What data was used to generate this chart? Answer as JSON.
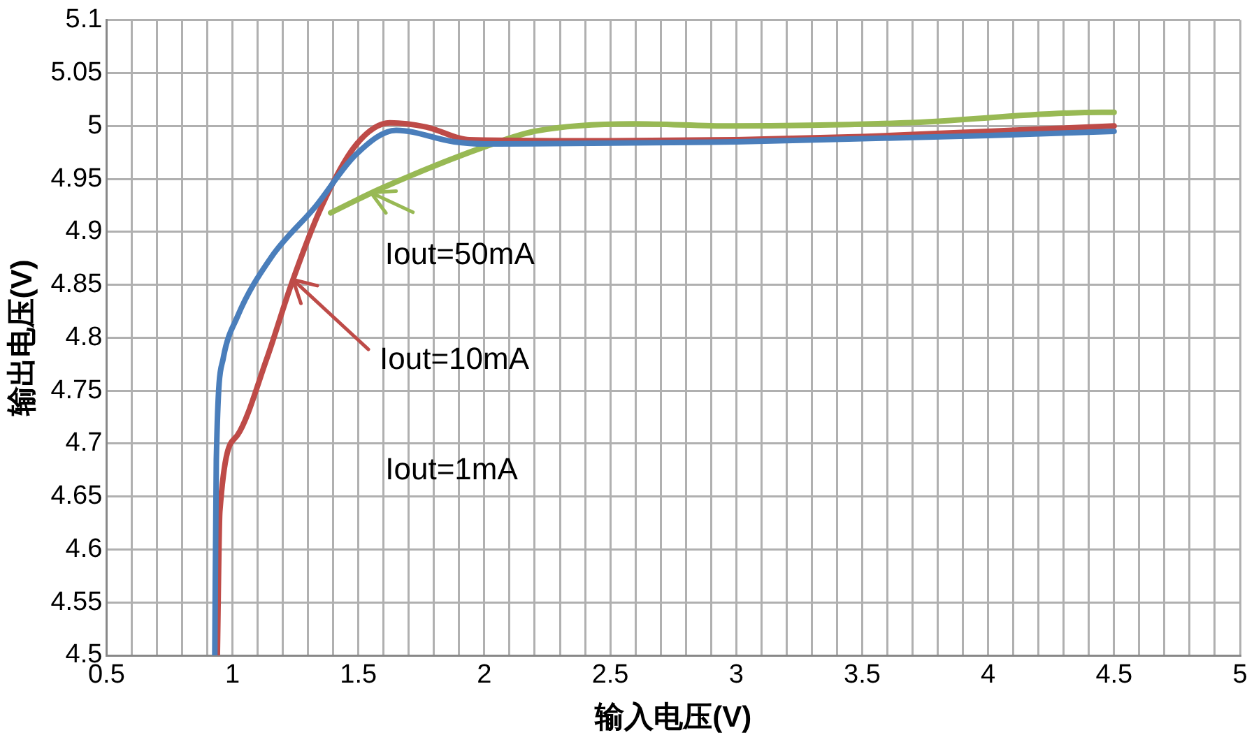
{
  "chart_data": {
    "type": "line",
    "xlabel": "输入电压(V)",
    "ylabel": "输出电压(V)",
    "xlim": [
      0.5,
      5
    ],
    "ylim": [
      4.5,
      5.1
    ],
    "xticks": [
      0.5,
      {
        "value": 0.6,
        "label": null
      },
      {
        "value": 0.7,
        "label": null
      },
      {
        "value": 0.8,
        "label": null
      },
      {
        "value": 0.9,
        "label": null
      },
      1,
      {
        "value": 1.1,
        "label": null
      },
      {
        "value": 1.2,
        "label": null
      },
      {
        "value": 1.3,
        "label": null
      },
      {
        "value": 1.4,
        "label": null
      },
      1.5,
      {
        "value": 1.6,
        "label": null
      },
      {
        "value": 1.7,
        "label": null
      },
      {
        "value": 1.8,
        "label": null
      },
      {
        "value": 1.9,
        "label": null
      },
      2,
      {
        "value": 2.1,
        "label": null
      },
      {
        "value": 2.2,
        "label": null
      },
      {
        "value": 2.3,
        "label": null
      },
      {
        "value": 2.4,
        "label": null
      },
      2.5,
      {
        "value": 2.6,
        "label": null
      },
      {
        "value": 2.7,
        "label": null
      },
      {
        "value": 2.8,
        "label": null
      },
      {
        "value": 2.9,
        "label": null
      },
      3,
      {
        "value": 3.1,
        "label": null
      },
      {
        "value": 3.2,
        "label": null
      },
      {
        "value": 3.3,
        "label": null
      },
      {
        "value": 3.4,
        "label": null
      },
      3.5,
      {
        "value": 3.6,
        "label": null
      },
      {
        "value": 3.7,
        "label": null
      },
      {
        "value": 3.8,
        "label": null
      },
      {
        "value": 3.9,
        "label": null
      },
      4,
      {
        "value": 4.1,
        "label": null
      },
      {
        "value": 4.2,
        "label": null
      },
      {
        "value": 4.3,
        "label": null
      },
      {
        "value": 4.4,
        "label": null
      },
      4.5,
      {
        "value": 4.6,
        "label": null
      },
      {
        "value": 4.7,
        "label": null
      },
      {
        "value": 4.8,
        "label": null
      },
      {
        "value": 4.9,
        "label": null
      },
      5
    ],
    "yticks": [
      4.5,
      4.55,
      4.6,
      4.65,
      4.7,
      4.75,
      4.8,
      4.85,
      4.9,
      4.95,
      5,
      5.05,
      5.1
    ],
    "grid": true,
    "legend": false,
    "marker": "none",
    "line_style": "solid",
    "series": [
      {
        "color": "#4a7ebb",
        "x": [
          0.93,
          0.936,
          0.963,
          1.018,
          1.154,
          1.33,
          1.49,
          1.65,
          1.88,
          2.0,
          3.0,
          3.5,
          4.0,
          4.5
        ],
        "values": [
          4.5,
          4.685,
          4.78,
          4.819,
          4.876,
          4.924,
          4.973,
          4.996,
          4.985,
          4.983,
          4.985,
          4.988,
          4.991,
          4.995
        ]
      },
      {
        "color": "#be4b48",
        "x": [
          0.94,
          0.95,
          1.02,
          1.136,
          1.236,
          1.354,
          1.49,
          1.625,
          1.77,
          1.94,
          2.5,
          3.0,
          3.5,
          4.0,
          4.5
        ],
        "values": [
          4.5,
          4.636,
          4.708,
          4.78,
          4.852,
          4.924,
          4.982,
          5.003,
          4.999,
          4.987,
          4.986,
          4.987,
          4.99,
          4.995,
          5.0
        ]
      },
      {
        "color": "#98b954",
        "x": [
          1.39,
          1.59,
          2.02,
          2.2,
          2.59,
          2.98,
          3.67,
          4.45,
          4.5
        ],
        "values": [
          4.918,
          4.941,
          4.982,
          4.995,
          5.002,
          5.0,
          5.003,
          5.013,
          5.013
        ]
      }
    ],
    "annotations": [
      {
        "text": "Iout=50mA",
        "x": 1.55,
        "y": 4.937
      },
      {
        "text": "Iout=10mA",
        "x": 1.24,
        "y": 4.855
      },
      "Iout=1mA"
    ]
  }
}
